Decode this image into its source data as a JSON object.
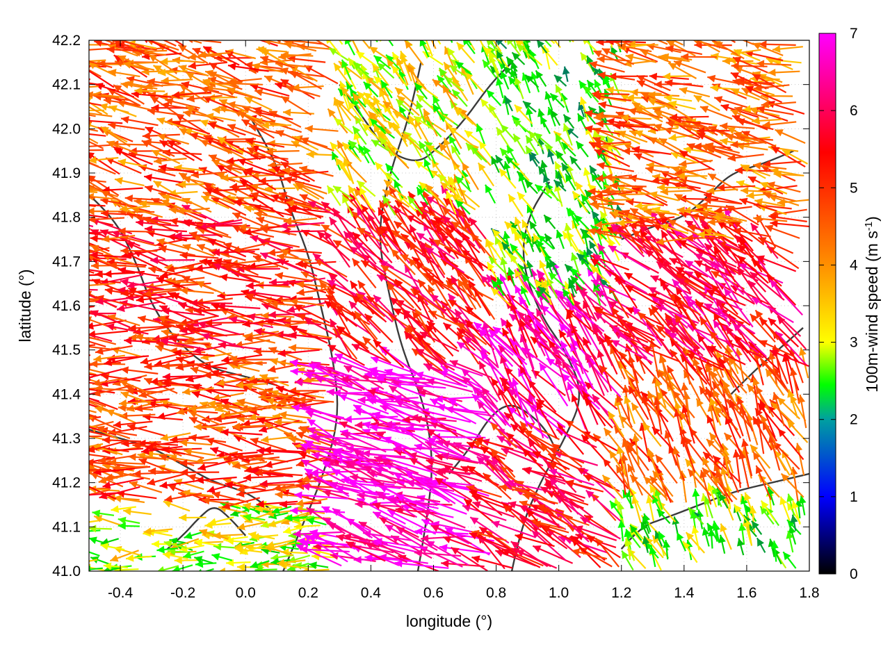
{
  "chart_data": {
    "type": "vector-field",
    "xlabel": "longitude (°)",
    "ylabel": "latitude (°)",
    "xlim": [
      -0.5,
      1.8
    ],
    "ylim": [
      41.0,
      42.2
    ],
    "x_ticks": [
      "-0.4",
      "-0.2",
      "0.0",
      "0.2",
      "0.4",
      "0.6",
      "0.8",
      "1.0",
      "1.2",
      "1.4",
      "1.6",
      "1.8"
    ],
    "y_ticks": [
      "41.0",
      "41.1",
      "41.2",
      "41.3",
      "41.4",
      "41.5",
      "41.6",
      "41.7",
      "41.8",
      "41.9",
      "42.0",
      "42.1",
      "42.2"
    ],
    "grid": "dotted",
    "colorbar": {
      "label": "100m-wind speed (m s",
      "label_sup": "-1",
      "label_end": ")",
      "range": [
        0,
        7
      ],
      "ticks": [
        "0",
        "1",
        "2",
        "3",
        "4",
        "5",
        "6",
        "7"
      ],
      "colors": [
        "#000000",
        "#0000ff",
        "#00ff00",
        "#ffff00",
        "#ff8c00",
        "#ff0000",
        "#ff00ff"
      ]
    },
    "vector_regions": [
      {
        "lon": [
          -0.5,
          0.3
        ],
        "lat": [
          41.0,
          41.15
        ],
        "u": -1.0,
        "v": 0.0,
        "speed": 3.0
      },
      {
        "lon": [
          -0.5,
          0.3
        ],
        "lat": [
          41.15,
          41.5
        ],
        "u": -1.0,
        "v": 0.08,
        "speed": 4.8
      },
      {
        "lon": [
          -0.5,
          0.3
        ],
        "lat": [
          41.5,
          41.8
        ],
        "u": -1.0,
        "v": 0.12,
        "speed": 5.2
      },
      {
        "lon": [
          -0.5,
          0.3
        ],
        "lat": [
          41.8,
          42.2
        ],
        "u": -1.0,
        "v": 0.25,
        "speed": 4.6
      },
      {
        "lon": [
          0.3,
          0.8
        ],
        "lat": [
          41.0,
          41.45
        ],
        "u": -1.0,
        "v": 0.3,
        "speed": 6.7
      },
      {
        "lon": [
          0.3,
          0.8
        ],
        "lat": [
          41.45,
          41.8
        ],
        "u": -0.6,
        "v": 0.6,
        "speed": 5.5
      },
      {
        "lon": [
          0.3,
          0.8
        ],
        "lat": [
          41.8,
          42.2
        ],
        "u": -0.4,
        "v": 0.5,
        "speed": 3.2
      },
      {
        "lon": [
          0.8,
          1.2
        ],
        "lat": [
          41.0,
          41.3
        ],
        "u": -0.8,
        "v": 0.5,
        "speed": 5.6
      },
      {
        "lon": [
          0.8,
          1.2
        ],
        "lat": [
          41.3,
          41.6
        ],
        "u": -0.5,
        "v": 0.7,
        "speed": 6.3
      },
      {
        "lon": [
          0.8,
          1.2
        ],
        "lat": [
          41.6,
          42.2
        ],
        "u": -0.3,
        "v": 0.5,
        "speed": 2.5
      },
      {
        "lon": [
          1.2,
          1.8
        ],
        "lat": [
          41.0,
          41.15
        ],
        "u": -0.3,
        "v": 0.7,
        "speed": 2.6
      },
      {
        "lon": [
          1.2,
          1.8
        ],
        "lat": [
          41.15,
          41.45
        ],
        "u": -0.4,
        "v": 0.8,
        "speed": 4.6
      },
      {
        "lon": [
          1.2,
          1.8
        ],
        "lat": [
          41.45,
          41.75
        ],
        "u": -0.7,
        "v": 0.6,
        "speed": 5.8
      },
      {
        "lon": [
          1.2,
          1.8
        ],
        "lat": [
          41.75,
          42.2
        ],
        "u": -1.0,
        "v": 0.2,
        "speed": 4.4
      }
    ],
    "contours": [
      [
        [
          0.12,
          41.0
        ],
        [
          0.18,
          41.1
        ],
        [
          0.25,
          41.22
        ],
        [
          0.3,
          41.35
        ],
        [
          0.28,
          41.48
        ],
        [
          0.24,
          41.6
        ],
        [
          0.2,
          41.72
        ],
        [
          0.14,
          41.82
        ],
        [
          0.1,
          41.92
        ],
        [
          0.02,
          42.02
        ]
      ],
      [
        [
          0.55,
          41.0
        ],
        [
          0.58,
          41.12
        ],
        [
          0.6,
          41.25
        ],
        [
          0.57,
          41.38
        ],
        [
          0.5,
          41.5
        ],
        [
          0.46,
          41.62
        ],
        [
          0.42,
          41.76
        ],
        [
          0.46,
          41.9
        ],
        [
          0.52,
          42.02
        ],
        [
          0.56,
          42.15
        ]
      ],
      [
        [
          0.85,
          41.0
        ],
        [
          0.88,
          41.1
        ],
        [
          0.94,
          41.2
        ],
        [
          1.02,
          41.3
        ],
        [
          1.08,
          41.4
        ],
        [
          1.02,
          41.5
        ],
        [
          0.94,
          41.58
        ],
        [
          0.88,
          41.7
        ],
        [
          0.9,
          41.8
        ],
        [
          0.97,
          41.88
        ]
      ],
      [
        [
          1.2,
          41.05
        ],
        [
          1.26,
          41.1
        ],
        [
          1.34,
          41.12
        ],
        [
          1.45,
          41.15
        ],
        [
          1.56,
          41.18
        ],
        [
          1.68,
          41.2
        ],
        [
          1.8,
          41.22
        ]
      ],
      [
        [
          -0.5,
          41.85
        ],
        [
          -0.42,
          41.8
        ],
        [
          -0.35,
          41.7
        ],
        [
          -0.3,
          41.6
        ],
        [
          -0.22,
          41.52
        ],
        [
          -0.12,
          41.46
        ],
        [
          0.0,
          41.44
        ],
        [
          0.1,
          41.42
        ]
      ],
      [
        [
          -0.5,
          41.32
        ],
        [
          -0.4,
          41.3
        ],
        [
          -0.3,
          41.28
        ],
        [
          -0.2,
          41.24
        ],
        [
          -0.1,
          41.2
        ],
        [
          0.0,
          41.18
        ],
        [
          0.08,
          41.14
        ]
      ],
      [
        [
          1.2,
          41.75
        ],
        [
          1.3,
          41.78
        ],
        [
          1.4,
          41.8
        ],
        [
          1.48,
          41.85
        ],
        [
          1.55,
          41.9
        ],
        [
          1.65,
          41.92
        ],
        [
          1.75,
          41.95
        ]
      ],
      [
        [
          0.3,
          42.1
        ],
        [
          0.38,
          42.02
        ],
        [
          0.45,
          41.95
        ],
        [
          0.55,
          41.92
        ],
        [
          0.62,
          41.96
        ],
        [
          0.7,
          42.02
        ],
        [
          0.78,
          42.1
        ],
        [
          0.85,
          42.15
        ]
      ],
      [
        [
          0.65,
          41.22
        ],
        [
          0.72,
          41.28
        ],
        [
          0.78,
          41.35
        ],
        [
          0.84,
          41.38
        ],
        [
          0.9,
          41.36
        ],
        [
          0.96,
          41.32
        ],
        [
          1.0,
          41.26
        ]
      ],
      [
        [
          1.55,
          41.4
        ],
        [
          1.62,
          41.45
        ],
        [
          1.7,
          41.5
        ],
        [
          1.78,
          41.55
        ]
      ],
      [
        [
          -0.25,
          41.05
        ],
        [
          -0.2,
          41.08
        ],
        [
          -0.15,
          41.12
        ],
        [
          -0.1,
          41.15
        ],
        [
          -0.05,
          41.12
        ],
        [
          0.0,
          41.08
        ]
      ]
    ]
  }
}
